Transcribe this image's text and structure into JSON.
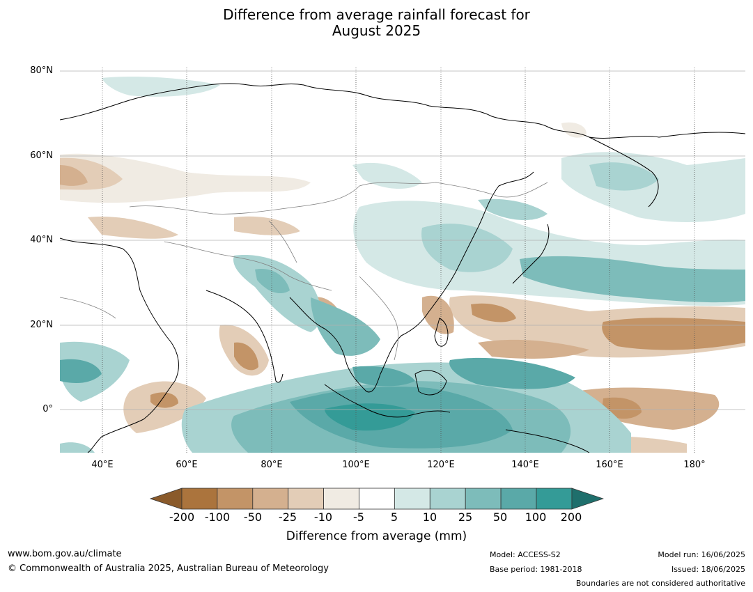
{
  "title_line1": "Difference from average rainfall forecast for",
  "title_line2": "August 2025",
  "lat_labels": [
    "80°N",
    "60°N",
    "40°N",
    "20°N",
    "0°"
  ],
  "lon_labels": [
    "40°E",
    "60°E",
    "80°E",
    "100°E",
    "120°E",
    "140°E",
    "160°E",
    "180°"
  ],
  "colorbar": {
    "ticks": [
      "-200",
      "-100",
      "-50",
      "-25",
      "-10",
      "-5",
      "5",
      "10",
      "25",
      "50",
      "100",
      "200"
    ],
    "colors": [
      "#8a5a2a",
      "#ab743d",
      "#c39467",
      "#d4b08f",
      "#e3cdb7",
      "#f0ebe3",
      "#ffffff",
      "#d4e8e6",
      "#a9d3d1",
      "#7dbcba",
      "#5aa9a8",
      "#349b97",
      "#1f6f6c"
    ],
    "title": "Difference from average (mm)"
  },
  "footer": {
    "url": "www.bom.gov.au/climate",
    "copyright": "© Commonwealth of Australia 2025, Australian Bureau of Meteorology",
    "model": "Model: ACCESS-S2",
    "base_period": "Base period: 1981-2018",
    "model_run": "Model run: 16/06/2025",
    "issued": "Issued: 18/06/2025",
    "disclaimer": "Boundaries are not considered authoritative"
  }
}
